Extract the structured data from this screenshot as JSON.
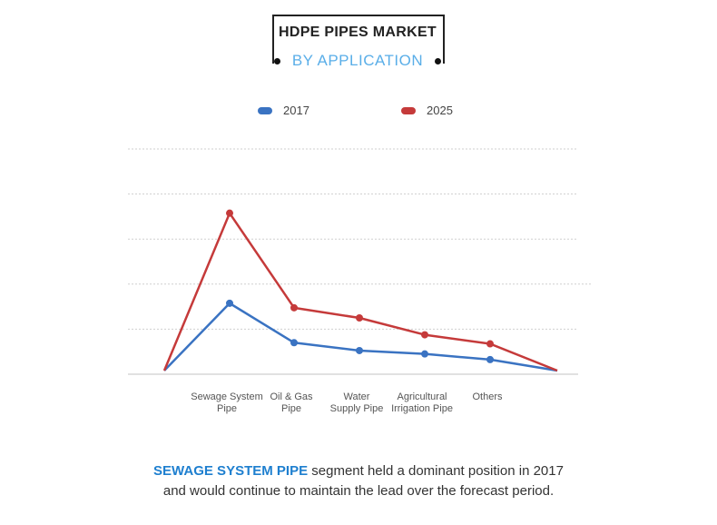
{
  "title": {
    "line1": "HDPE PIPES MARKET",
    "line2": "BY APPLICATION"
  },
  "colors": {
    "series_2017": "#3a73c2",
    "series_2025": "#c53a3a",
    "accent": "#5aaee8",
    "highlight": "#1e7fcf",
    "grid": "#cfcfcf"
  },
  "chart_data": {
    "type": "line",
    "categories": [
      "Sewage System\nPipe",
      "Oil & Gas\nPipe",
      "Water\nSupply Pipe",
      "Agricultural\nIrrigation Pipe",
      "Others"
    ],
    "series": [
      {
        "name": "2017",
        "values": [
          31.5,
          14,
          10.5,
          9,
          6.5
        ]
      },
      {
        "name": "2025",
        "values": [
          71.5,
          29.5,
          25,
          17.5,
          13.5
        ]
      }
    ],
    "ylim": [
      0,
      100
    ],
    "grid": true,
    "legend": "top",
    "xlabel": "",
    "ylabel": ""
  },
  "footer": {
    "highlight": "SEWAGE SYSTEM PIPE",
    "rest1": " segment held a dominant position in 2017",
    "line2": "and would continue to maintain the lead over the forecast period."
  }
}
